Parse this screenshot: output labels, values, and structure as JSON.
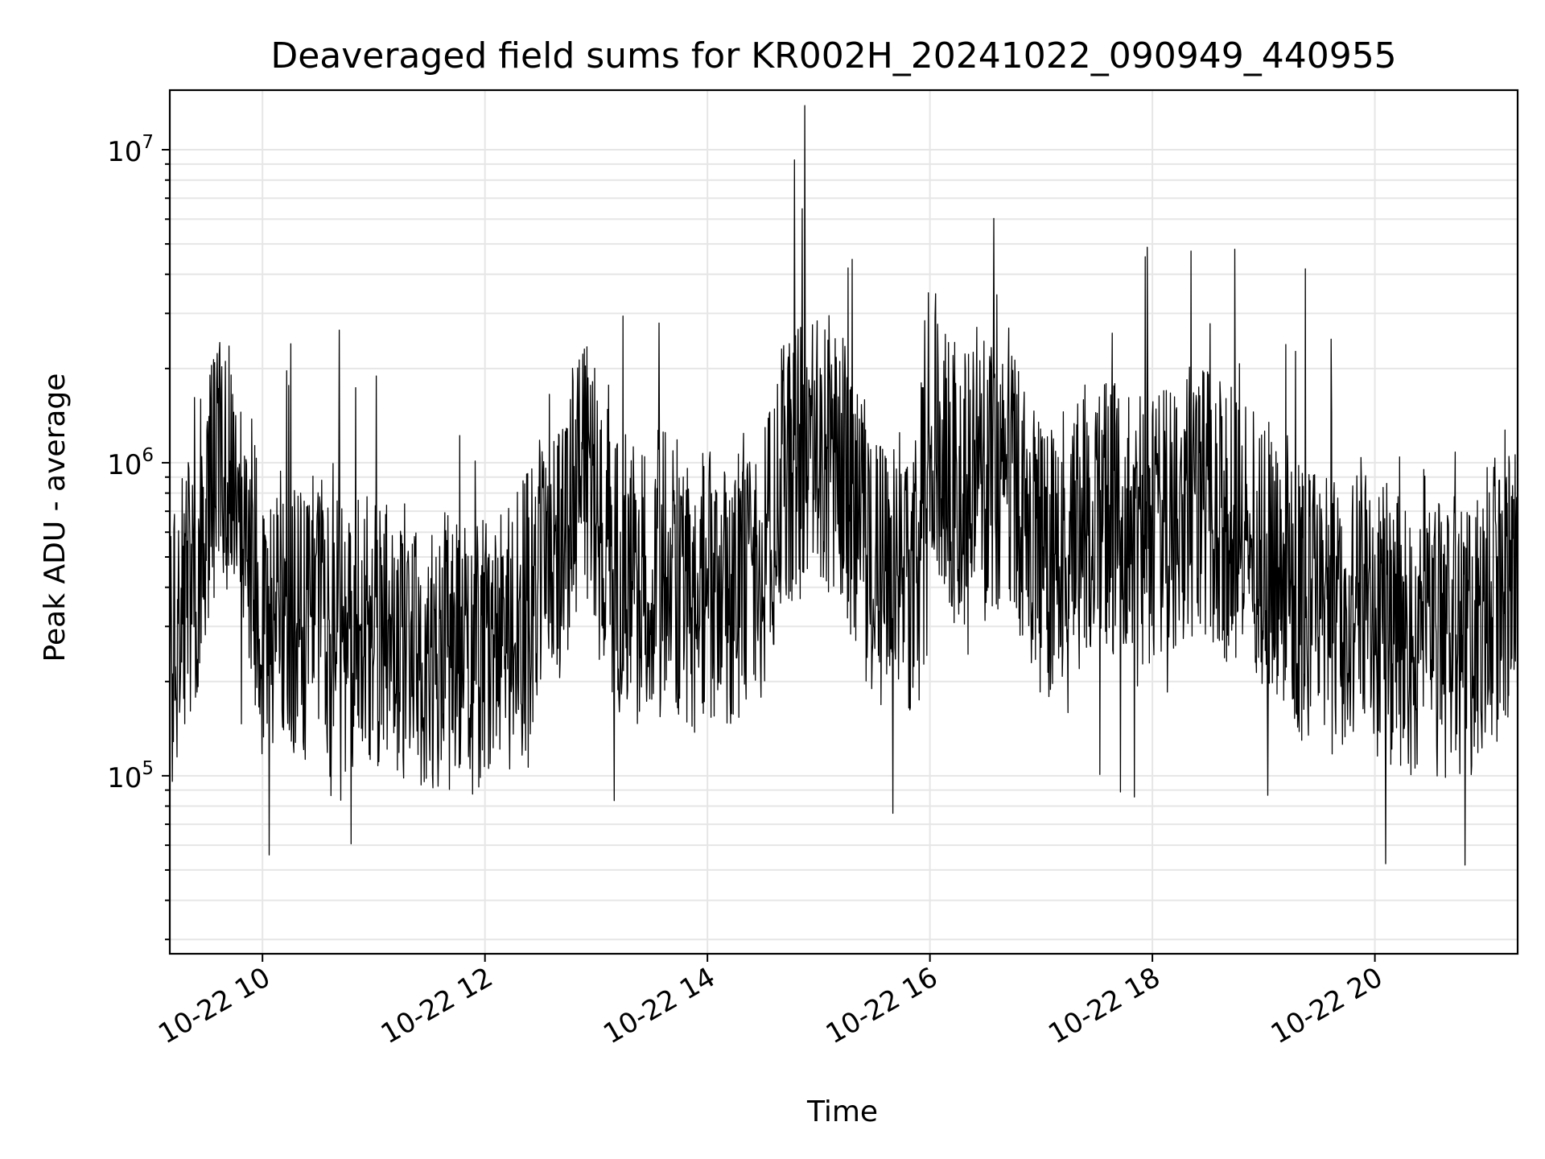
{
  "chart_data": {
    "type": "line",
    "title": "Deaveraged field sums for KR002H_20241022_090949_440955",
    "xlabel": "Time",
    "ylabel": "Peak ADU - average",
    "yscale": "log",
    "ylim": [
      27000,
      15500000
    ],
    "xlim": [
      "2024-10-22T09:10",
      "2024-10-22T21:17"
    ],
    "grid": true,
    "line_color": "#000000",
    "x_ticks": [
      {
        "value": "2024-10-22T10:00",
        "label": "10-22 10"
      },
      {
        "value": "2024-10-22T12:00",
        "label": "10-22 12"
      },
      {
        "value": "2024-10-22T14:00",
        "label": "10-22 14"
      },
      {
        "value": "2024-10-22T16:00",
        "label": "10-22 16"
      },
      {
        "value": "2024-10-22T18:00",
        "label": "10-22 18"
      },
      {
        "value": "2024-10-22T20:00",
        "label": "10-22 20"
      }
    ],
    "y_ticks": [
      {
        "value": 100000,
        "base": "10",
        "exp": "5"
      },
      {
        "value": 1000000,
        "base": "10",
        "exp": "6"
      },
      {
        "value": 10000000,
        "base": "10",
        "exp": "7"
      }
    ],
    "series": [
      {
        "x": [
          "2024-10-22T09:10",
          "2024-10-22T09:20",
          "2024-10-22T09:30",
          "2024-10-22T09:40",
          "2024-10-22T09:50",
          "2024-10-22T10:00",
          "2024-10-22T10:10",
          "2024-10-22T10:20",
          "2024-10-22T10:30",
          "2024-10-22T10:40",
          "2024-10-22T10:50",
          "2024-10-22T11:00",
          "2024-10-22T11:10",
          "2024-10-22T11:20",
          "2024-10-22T11:30",
          "2024-10-22T11:40",
          "2024-10-22T11:50",
          "2024-10-22T12:00",
          "2024-10-22T12:10",
          "2024-10-22T12:20",
          "2024-10-22T12:30",
          "2024-10-22T12:40",
          "2024-10-22T12:50",
          "2024-10-22T13:00",
          "2024-10-22T13:10",
          "2024-10-22T13:20",
          "2024-10-22T13:30",
          "2024-10-22T13:40",
          "2024-10-22T13:50",
          "2024-10-22T14:00",
          "2024-10-22T14:10",
          "2024-10-22T14:20",
          "2024-10-22T14:30",
          "2024-10-22T14:40",
          "2024-10-22T14:50",
          "2024-10-22T15:00",
          "2024-10-22T15:10",
          "2024-10-22T15:20",
          "2024-10-22T15:30",
          "2024-10-22T15:40",
          "2024-10-22T15:50",
          "2024-10-22T16:00",
          "2024-10-22T16:10",
          "2024-10-22T16:20",
          "2024-10-22T16:30",
          "2024-10-22T16:40",
          "2024-10-22T16:50",
          "2024-10-22T17:00",
          "2024-10-22T17:10",
          "2024-10-22T17:20",
          "2024-10-22T17:30",
          "2024-10-22T17:40",
          "2024-10-22T17:50",
          "2024-10-22T18:00",
          "2024-10-22T18:10",
          "2024-10-22T18:20",
          "2024-10-22T18:30",
          "2024-10-22T18:40",
          "2024-10-22T18:50",
          "2024-10-22T19:00",
          "2024-10-22T19:10",
          "2024-10-22T19:20",
          "2024-10-22T19:30",
          "2024-10-22T19:40",
          "2024-10-22T19:50",
          "2024-10-22T20:00",
          "2024-10-22T20:10",
          "2024-10-22T20:20",
          "2024-10-22T20:30",
          "2024-10-22T20:40",
          "2024-10-22T20:50",
          "2024-10-22T21:00",
          "2024-10-22T21:10",
          "2024-10-22T21:17"
        ],
        "y": [
          250000,
          400000,
          700000,
          1000000,
          800000,
          300000,
          400000,
          300000,
          350000,
          300000,
          280000,
          300000,
          280000,
          260000,
          250000,
          250000,
          240000,
          250000,
          280000,
          300000,
          500000,
          450000,
          1000000,
          700000,
          450000,
          400000,
          450000,
          500000,
          350000,
          400000,
          350000,
          450000,
          500000,
          900000,
          1000000,
          1100000,
          1000000,
          700000,
          450000,
          400000,
          400000,
          1500000,
          900000,
          800000,
          850000,
          900000,
          750000,
          500000,
          500000,
          600000,
          700000,
          650000,
          600000,
          650000,
          700000,
          750000,
          700000,
          650000,
          600000,
          550000,
          400000,
          350000,
          350000,
          300000,
          400000,
          350000,
          300000,
          280000,
          300000,
          250000,
          250000,
          350000,
          400000,
          450000
        ]
      }
    ]
  }
}
